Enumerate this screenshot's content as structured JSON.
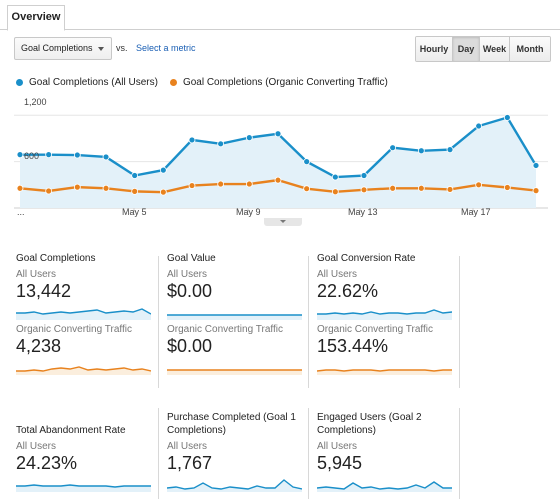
{
  "tabs": {
    "overview": "Overview"
  },
  "controls": {
    "metric_select": "Goal Completions",
    "vs": "vs.",
    "select_metric": "Select a metric",
    "granularity": [
      {
        "label": "Hourly",
        "active": false
      },
      {
        "label": "Day",
        "active": true
      },
      {
        "label": "Week",
        "active": false
      },
      {
        "label": "Month",
        "active": false
      }
    ]
  },
  "legend": [
    {
      "name": "Goal Completions (All Users)",
      "color": "#1a8fc9"
    },
    {
      "name": "Goal Completions (Organic Converting Traffic)",
      "color": "#e8821e"
    }
  ],
  "chart_data": {
    "type": "area",
    "y_ticks": [
      "1,200",
      "600"
    ],
    "x_ticks": [
      "...",
      "May 5",
      "May 9",
      "May 13",
      "May 17"
    ],
    "ylim": [
      0,
      1500
    ],
    "grid": true,
    "series": [
      {
        "name": "Goal Completions (All Users)",
        "color": "#1a8fc9",
        "values": [
          690,
          690,
          685,
          660,
          420,
          490,
          880,
          830,
          910,
          960,
          600,
          400,
          420,
          780,
          740,
          755,
          1060,
          1170,
          550
        ]
      },
      {
        "name": "Goal Completions (Organic Converting Traffic)",
        "color": "#e8821e",
        "values": [
          255,
          220,
          270,
          255,
          215,
          205,
          290,
          310,
          310,
          360,
          250,
          210,
          235,
          255,
          255,
          240,
          300,
          265,
          225
        ]
      }
    ]
  },
  "cards": [
    {
      "title": "Goal Completions",
      "all_label": "All Users",
      "all_value": "13,442",
      "org_label": "Organic Converting Traffic",
      "org_value": "4,238"
    },
    {
      "title": "Goal Value",
      "all_label": "All Users",
      "all_value": "$0.00",
      "org_label": "Organic Converting Traffic",
      "org_value": "$0.00"
    },
    {
      "title": "Goal Conversion Rate",
      "all_label": "All Users",
      "all_value": "22.62%",
      "org_label": "Organic Converting Traffic",
      "org_value": "153.44%"
    },
    {
      "title": "Total Abandonment Rate",
      "all_label": "All Users",
      "all_value": "24.23%"
    },
    {
      "title": "Purchase Completed (Goal 1 Completions)",
      "all_label": "All Users",
      "all_value": "1,767"
    },
    {
      "title": "Engaged Users (Goal 2 Completions)",
      "all_label": "All Users",
      "all_value": "5,945"
    }
  ],
  "colors": {
    "blue": "#1a8fc9",
    "orange": "#e8821e",
    "fill": "#e3f1f9"
  }
}
